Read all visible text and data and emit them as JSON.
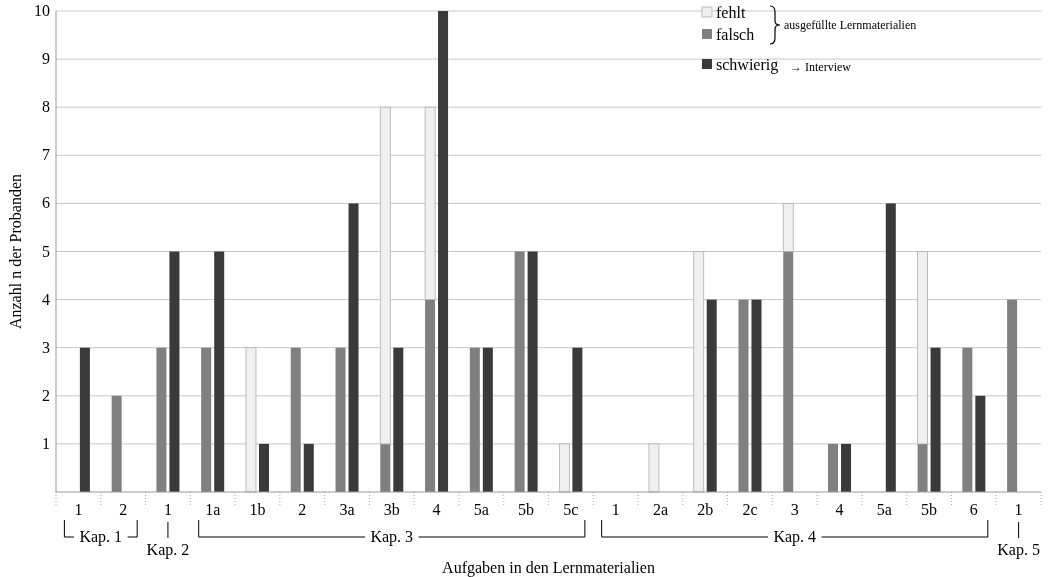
{
  "chart_data": {
    "type": "bar",
    "xlabel": "Aufgaben in den Lernmaterialien",
    "ylabel": "Anzahl n der Probanden",
    "categories": [
      "1",
      "2",
      "1",
      "1a",
      "1b",
      "2",
      "3a",
      "3b",
      "4",
      "5a",
      "5b",
      "5c",
      "1",
      "2a",
      "2b",
      "2c",
      "3",
      "4",
      "5a",
      "5b",
      "6",
      "1"
    ],
    "series": [
      {
        "name": "falsch",
        "color": "#808080",
        "values": [
          0,
          2,
          3,
          3,
          0,
          3,
          3,
          1,
          4,
          3,
          5,
          0,
          0,
          0,
          0,
          4,
          5,
          1,
          0,
          1,
          3,
          4
        ]
      },
      {
        "name": "fehlt",
        "color": "#f0f0f0",
        "base": [
          null,
          null,
          null,
          null,
          0,
          null,
          null,
          1,
          4,
          null,
          null,
          0,
          null,
          0,
          0,
          null,
          5,
          null,
          null,
          1,
          null,
          null
        ],
        "values": [
          0,
          0,
          0,
          0,
          3,
          0,
          0,
          7,
          4,
          0,
          0,
          1,
          0,
          1,
          5,
          0,
          1,
          0,
          0,
          4,
          0,
          0
        ]
      },
      {
        "name": "schwierig",
        "color": "#3a3a3a",
        "values": [
          3,
          0,
          5,
          5,
          1,
          1,
          6,
          3,
          10,
          3,
          5,
          3,
          0,
          0,
          4,
          4,
          0,
          1,
          6,
          3,
          2,
          0
        ]
      }
    ],
    "ylim": [
      0,
      10
    ],
    "yticks": [
      1,
      2,
      3,
      4,
      5,
      6,
      7,
      8,
      9,
      10
    ],
    "grid": "y",
    "legend": "top right",
    "annotations": [
      "ausgefüllte Lernmaterialien",
      "→ Interview",
      "Kap. 1",
      "Kap. 2",
      "Kap. 3",
      "Kap. 4",
      "Kap. 5"
    ]
  }
}
